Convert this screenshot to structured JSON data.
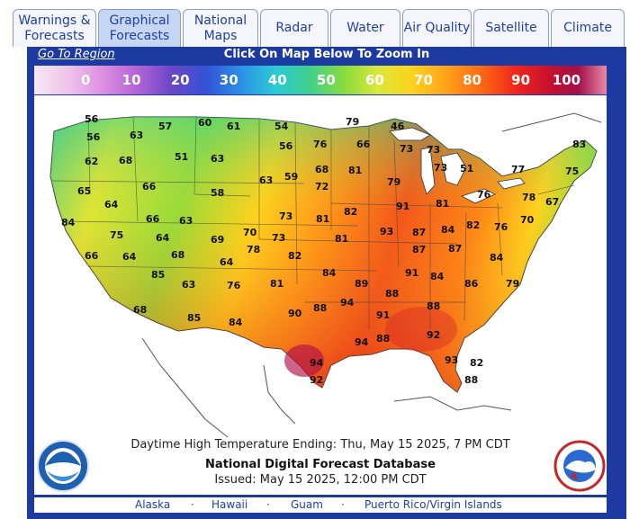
{
  "tabs": [
    {
      "label_line1": "Warnings &",
      "label_line2": "Forecasts",
      "active": false
    },
    {
      "label_line1": "Graphical",
      "label_line2": "Forecasts",
      "active": true
    },
    {
      "label_line1": "National",
      "label_line2": "Maps",
      "active": false
    },
    {
      "label_line1": "Radar",
      "label_line2": "",
      "active": false
    },
    {
      "label_line1": "Water",
      "label_line2": "",
      "active": false
    },
    {
      "label_line1": "Air Quality",
      "label_line2": "",
      "active": false
    },
    {
      "label_line1": "Satellite",
      "label_line2": "",
      "active": false
    },
    {
      "label_line1": "Climate",
      "label_line2": "",
      "active": false
    }
  ],
  "region_bar": {
    "goto_label": "Go To Region",
    "instruction": "Click On Map Below To Zoom In"
  },
  "scale": {
    "labels": [
      "0",
      "10",
      "20",
      "30",
      "40",
      "50",
      "60",
      "70",
      "80",
      "90",
      "100"
    ]
  },
  "map": {
    "caption": "Daytime High Temperature Ending: Thu, May 15 2025, 7 PM CDT",
    "product": "National Digital Forecast Database",
    "issued": "Issued: May 15 2025, 12:00 PM CDT",
    "temperatures": [
      "56",
      "57",
      "60",
      "61",
      "54",
      "79",
      "46",
      "56",
      "63",
      "56",
      "76",
      "66",
      "73",
      "73",
      "83",
      "62",
      "68",
      "51",
      "63",
      "68",
      "81",
      "73",
      "51",
      "77",
      "75",
      "65",
      "66",
      "58",
      "63",
      "59",
      "72",
      "79",
      "91",
      "81",
      "76",
      "78",
      "67",
      "64",
      "66",
      "63",
      "73",
      "81",
      "82",
      "93",
      "87",
      "84",
      "82",
      "76",
      "70",
      "84",
      "75",
      "64",
      "69",
      "70",
      "78",
      "73",
      "81",
      "87",
      "87",
      "84",
      "66",
      "64",
      "68",
      "64",
      "82",
      "91",
      "84",
      "85",
      "63",
      "76",
      "81",
      "84",
      "89",
      "88",
      "86",
      "79",
      "68",
      "85",
      "84",
      "90",
      "88",
      "94",
      "91",
      "88",
      "94",
      "88",
      "92",
      "94",
      "93",
      "82",
      "92",
      "88"
    ]
  },
  "bottom_links": [
    "Alaska",
    "Hawaii",
    "Guam",
    "Puerto Rico/Virgin Islands"
  ],
  "colors": {
    "frame": "#1d3aa0",
    "tab_text": "#1f3fa8",
    "tab_active": "#c7d6f3"
  },
  "icons": {
    "left_logo": "noaa-logo",
    "right_logo": "nws-logo"
  }
}
